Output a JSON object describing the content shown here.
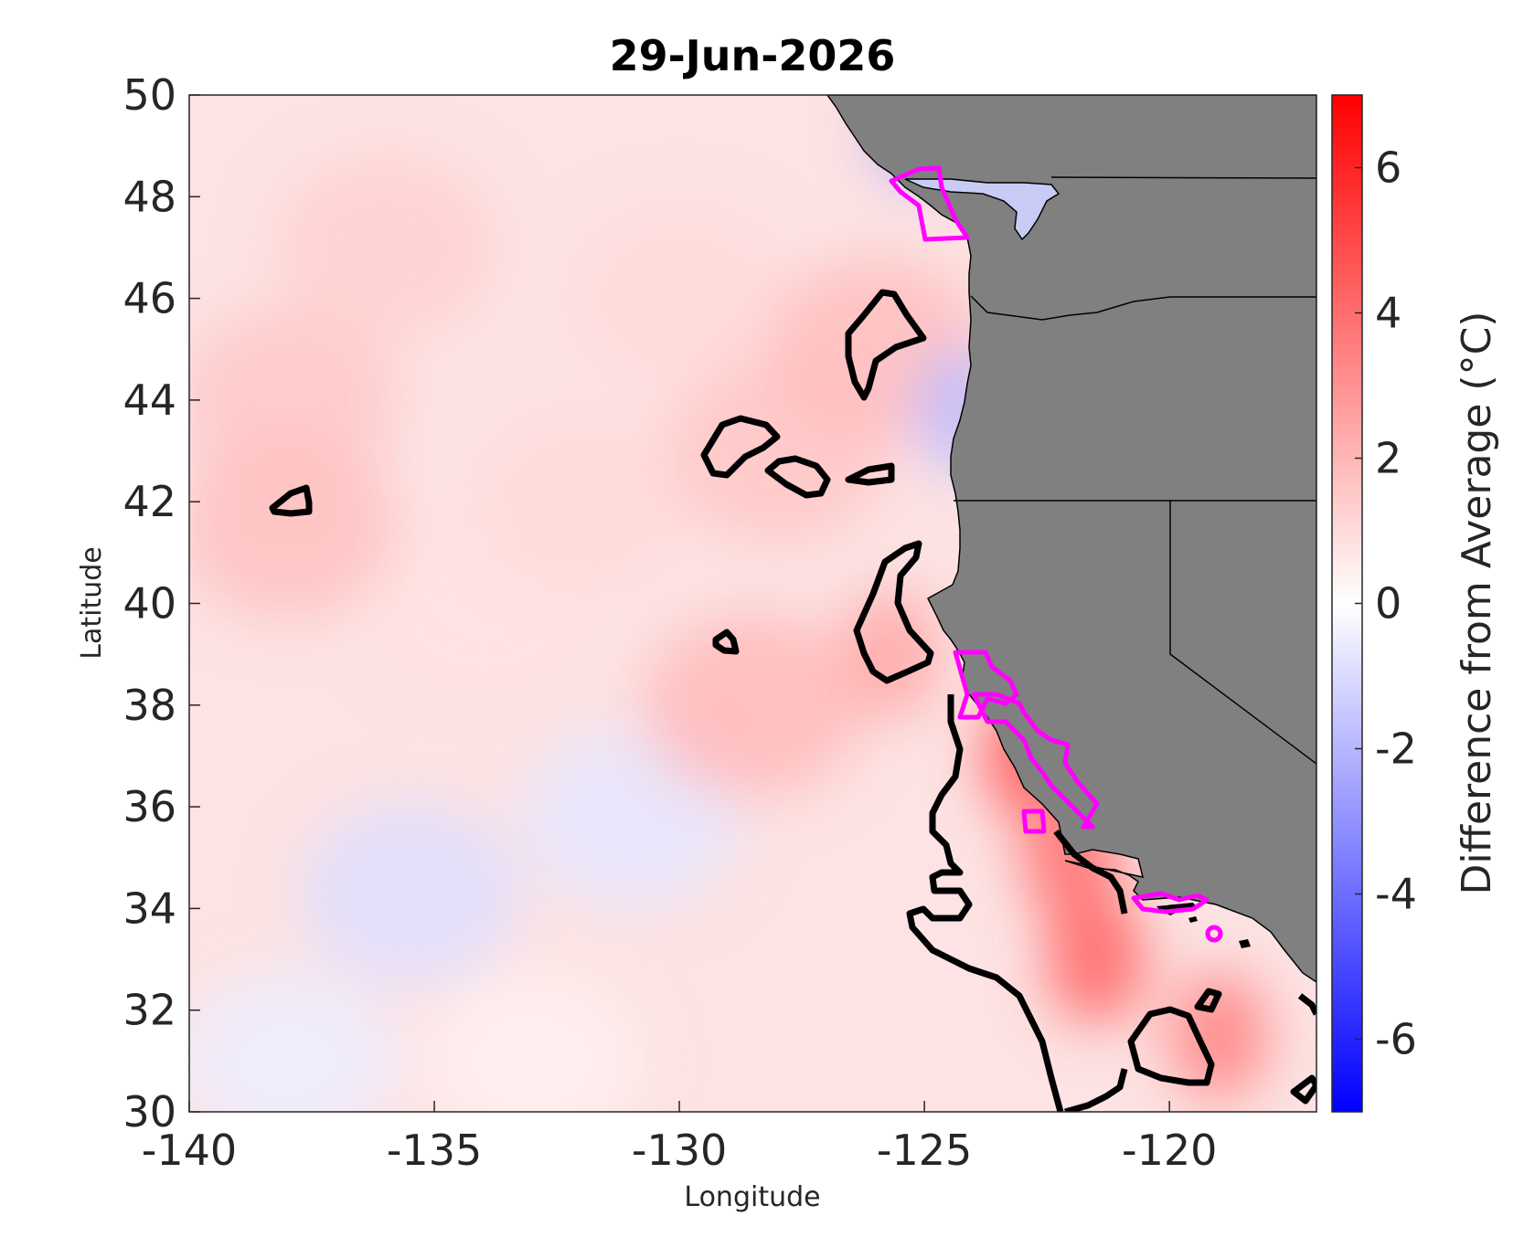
{
  "chart_data": {
    "type": "heatmap",
    "title": "29-Jun-2026",
    "xlabel": "Longitude",
    "ylabel": "Latitude",
    "xlim": [
      -140,
      -117
    ],
    "ylim": [
      30,
      50
    ],
    "xticks": [
      -140,
      -135,
      -130,
      -125,
      -120
    ],
    "yticks": [
      30,
      32,
      34,
      36,
      38,
      40,
      42,
      44,
      46,
      48,
      50
    ],
    "grid": false,
    "variable": "sea surface temperature anomaly",
    "colorbar": {
      "label": "Difference from Average (°C)",
      "range": [
        -7,
        7
      ],
      "ticks": [
        -6,
        -4,
        -2,
        0,
        2,
        4,
        6
      ],
      "colormap": [
        "#0000ff",
        "#ffffff",
        "#ff0000"
      ]
    },
    "colors": {
      "land": "#808080",
      "contour": "#000000",
      "marine_sanctuary_outline": "#ff00ff"
    },
    "anomaly_samples": [
      {
        "lon": -138,
        "lat": 44,
        "value": 1.5
      },
      {
        "lon": -136,
        "lat": 47,
        "value": 1.3
      },
      {
        "lon": -138,
        "lat": 41.5,
        "value": 1.7
      },
      {
        "lon": -134,
        "lat": 40,
        "value": 0.8
      },
      {
        "lon": -132,
        "lat": 42,
        "value": 1.0
      },
      {
        "lon": -130,
        "lat": 46,
        "value": 1.0
      },
      {
        "lon": -128,
        "lat": 43,
        "value": 1.6
      },
      {
        "lon": -131,
        "lat": 35.8,
        "value": -0.7
      },
      {
        "lon": -135.5,
        "lat": 34.3,
        "value": -0.9
      },
      {
        "lon": -138,
        "lat": 31,
        "value": -0.5
      },
      {
        "lon": -133,
        "lat": 31,
        "value": 0.4
      },
      {
        "lon": -126,
        "lat": 45,
        "value": 1.8
      },
      {
        "lon": -125,
        "lat": 49.5,
        "value": -2.5
      },
      {
        "lon": -124.2,
        "lat": 43.8,
        "value": -1.8
      },
      {
        "lon": -125.7,
        "lat": 39,
        "value": 2.5
      },
      {
        "lon": -122.8,
        "lat": 37,
        "value": 4.6
      },
      {
        "lon": -122,
        "lat": 35,
        "value": 4.0
      },
      {
        "lon": -121.5,
        "lat": 33,
        "value": 4.3
      },
      {
        "lon": -119,
        "lat": 31.5,
        "value": 3.5
      },
      {
        "lon": -128.5,
        "lat": 38,
        "value": 1.9
      }
    ],
    "contour_levels": [
      2
    ]
  }
}
